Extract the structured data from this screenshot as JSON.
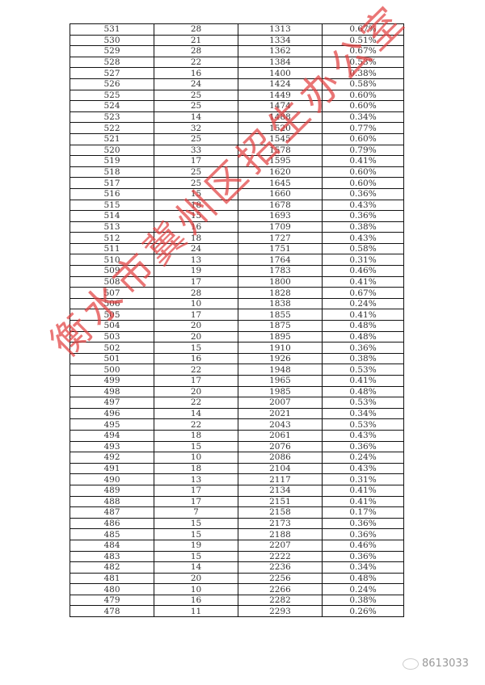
{
  "table": {
    "rows": [
      [
        "531",
        "28",
        "1313",
        "0.67%"
      ],
      [
        "530",
        "21",
        "1334",
        "0.51%"
      ],
      [
        "529",
        "28",
        "1362",
        "0.67%"
      ],
      [
        "528",
        "22",
        "1384",
        "0.53%"
      ],
      [
        "527",
        "16",
        "1400",
        "0.38%"
      ],
      [
        "526",
        "24",
        "1424",
        "0.58%"
      ],
      [
        "525",
        "25",
        "1449",
        "0.60%"
      ],
      [
        "524",
        "25",
        "1474",
        "0.60%"
      ],
      [
        "523",
        "14",
        "1488",
        "0.34%"
      ],
      [
        "522",
        "32",
        "1520",
        "0.77%"
      ],
      [
        "521",
        "25",
        "1545",
        "0.60%"
      ],
      [
        "520",
        "33",
        "1578",
        "0.79%"
      ],
      [
        "519",
        "17",
        "1595",
        "0.41%"
      ],
      [
        "518",
        "25",
        "1620",
        "0.60%"
      ],
      [
        "517",
        "25",
        "1645",
        "0.60%"
      ],
      [
        "516",
        "15",
        "1660",
        "0.36%"
      ],
      [
        "515",
        "18",
        "1678",
        "0.43%"
      ],
      [
        "514",
        "15",
        "1693",
        "0.36%"
      ],
      [
        "513",
        "16",
        "1709",
        "0.38%"
      ],
      [
        "512",
        "18",
        "1727",
        "0.43%"
      ],
      [
        "511",
        "24",
        "1751",
        "0.58%"
      ],
      [
        "510",
        "13",
        "1764",
        "0.31%"
      ],
      [
        "509",
        "19",
        "1783",
        "0.46%"
      ],
      [
        "508",
        "17",
        "1800",
        "0.41%"
      ],
      [
        "507",
        "28",
        "1828",
        "0.67%"
      ],
      [
        "506",
        "10",
        "1838",
        "0.24%"
      ],
      [
        "505",
        "17",
        "1855",
        "0.41%"
      ],
      [
        "504",
        "20",
        "1875",
        "0.48%"
      ],
      [
        "503",
        "20",
        "1895",
        "0.48%"
      ],
      [
        "502",
        "15",
        "1910",
        "0.36%"
      ],
      [
        "501",
        "16",
        "1926",
        "0.38%"
      ],
      [
        "500",
        "22",
        "1948",
        "0.53%"
      ],
      [
        "499",
        "17",
        "1965",
        "0.41%"
      ],
      [
        "498",
        "20",
        "1985",
        "0.48%"
      ],
      [
        "497",
        "22",
        "2007",
        "0.53%"
      ],
      [
        "496",
        "14",
        "2021",
        "0.34%"
      ],
      [
        "495",
        "22",
        "2043",
        "0.53%"
      ],
      [
        "494",
        "18",
        "2061",
        "0.43%"
      ],
      [
        "493",
        "15",
        "2076",
        "0.36%"
      ],
      [
        "492",
        "10",
        "2086",
        "0.24%"
      ],
      [
        "491",
        "18",
        "2104",
        "0.43%"
      ],
      [
        "490",
        "13",
        "2117",
        "0.31%"
      ],
      [
        "489",
        "17",
        "2134",
        "0.41%"
      ],
      [
        "488",
        "17",
        "2151",
        "0.41%"
      ],
      [
        "487",
        "7",
        "2158",
        "0.17%"
      ],
      [
        "486",
        "15",
        "2173",
        "0.36%"
      ],
      [
        "485",
        "15",
        "2188",
        "0.36%"
      ],
      [
        "484",
        "19",
        "2207",
        "0.46%"
      ],
      [
        "483",
        "15",
        "2222",
        "0.36%"
      ],
      [
        "482",
        "14",
        "2236",
        "0.34%"
      ],
      [
        "481",
        "20",
        "2256",
        "0.48%"
      ],
      [
        "480",
        "10",
        "2266",
        "0.24%"
      ],
      [
        "479",
        "16",
        "2282",
        "0.38%"
      ],
      [
        "478",
        "11",
        "2293",
        "0.26%"
      ]
    ]
  },
  "stamp": {
    "text": "衡水市冀州区招生办公室",
    "color": "#e03c3c"
  },
  "watermark": {
    "icon": "wechat-icon",
    "text": "8613033"
  }
}
